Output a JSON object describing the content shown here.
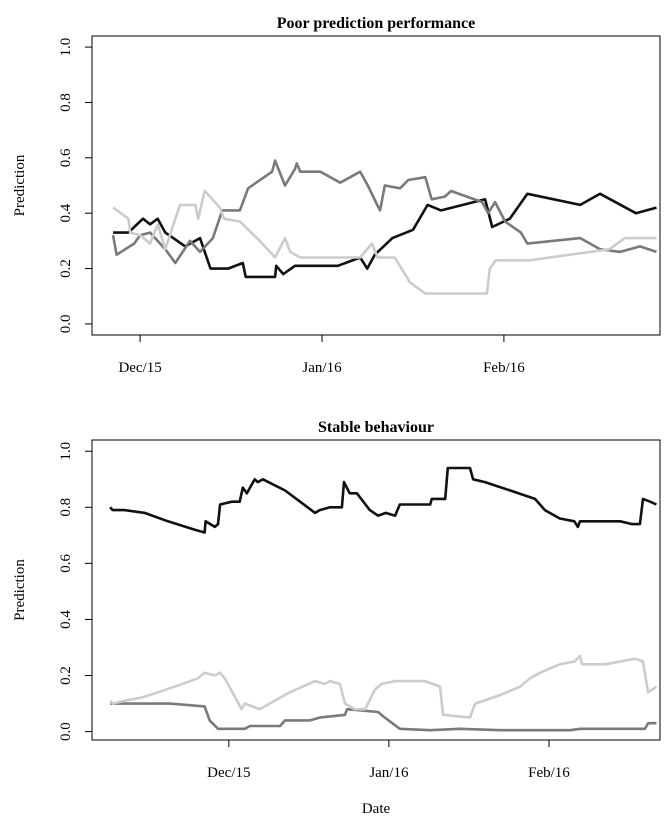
{
  "chart_data": [
    {
      "type": "line",
      "title": "Poor prediction performance",
      "ylabel": "Prediction",
      "xlim": [
        -8.2,
        88.6
      ],
      "xticks": [
        {
          "value": 0,
          "label": "Dec/15"
        },
        {
          "value": 31,
          "label": "Jan/16"
        },
        {
          "value": 62,
          "label": "Feb/16"
        }
      ],
      "ylim": [
        -0.04,
        1.04
      ],
      "yticks": [
        {
          "value": 0,
          "label": "0.0"
        },
        0.2,
        0.4,
        0.6,
        0.8,
        {
          "value": 1,
          "label": "1.0"
        }
      ],
      "series": [
        {
          "color": "#111111",
          "x": [
            -4.6,
            -2,
            0.5,
            1.7,
            3,
            4.3,
            7.7,
            10.2,
            12,
            15,
            17.5,
            18,
            23,
            23.2,
            24.4,
            26.4,
            33.7,
            37.5,
            38.7,
            40,
            43,
            46.5,
            49,
            51.3,
            58.8,
            60,
            63,
            66,
            75,
            78.4,
            84.5,
            88
          ],
          "values": [
            0.33,
            0.33,
            0.38,
            0.36,
            0.38,
            0.33,
            0.28,
            0.31,
            0.2,
            0.2,
            0.22,
            0.17,
            0.17,
            0.21,
            0.18,
            0.21,
            0.21,
            0.24,
            0.2,
            0.25,
            0.31,
            0.34,
            0.43,
            0.41,
            0.45,
            0.35,
            0.38,
            0.47,
            0.43,
            0.47,
            0.4,
            0.42
          ]
        },
        {
          "color": "#7a7a7a",
          "x": [
            -4.6,
            -4,
            -1,
            0,
            1.7,
            4.3,
            6,
            8.5,
            10.2,
            12.4,
            14,
            17,
            18.4,
            22.5,
            23,
            24.7,
            26.4,
            26.7,
            27.3,
            30.7,
            34.1,
            37.5,
            38.8,
            40.4,
            40.9,
            41.7,
            44.3,
            45.7,
            48.6,
            49.7,
            51.9,
            53,
            58.3,
            59.3,
            60.5,
            62.2,
            64.9,
            66,
            75,
            78.4,
            81.8,
            85.2,
            88
          ],
          "values": [
            0.32,
            0.25,
            0.29,
            0.32,
            0.33,
            0.27,
            0.22,
            0.3,
            0.26,
            0.31,
            0.41,
            0.41,
            0.49,
            0.55,
            0.59,
            0.5,
            0.56,
            0.58,
            0.55,
            0.55,
            0.51,
            0.55,
            0.5,
            0.43,
            0.41,
            0.5,
            0.49,
            0.52,
            0.53,
            0.45,
            0.46,
            0.48,
            0.44,
            0.4,
            0.44,
            0.37,
            0.33,
            0.29,
            0.31,
            0.27,
            0.26,
            0.28,
            0.26
          ]
        },
        {
          "color": "#cccccc",
          "x": [
            -4.6,
            -2,
            -1.7,
            0,
            1.7,
            3,
            4.3,
            6,
            6.8,
            9.4,
            9.9,
            11,
            12.3,
            13.6,
            14.3,
            17,
            20.4,
            23,
            24.7,
            25.6,
            27.3,
            37.5,
            39.5,
            40.5,
            43.4,
            46,
            48.6,
            59.1,
            59.6,
            60.6,
            66.4,
            76.7,
            80,
            82.6,
            88
          ],
          "values": [
            0.42,
            0.38,
            0.33,
            0.32,
            0.29,
            0.36,
            0.27,
            0.38,
            0.43,
            0.43,
            0.38,
            0.48,
            0.45,
            0.42,
            0.38,
            0.37,
            0.3,
            0.24,
            0.31,
            0.26,
            0.24,
            0.24,
            0.29,
            0.24,
            0.24,
            0.15,
            0.11,
            0.11,
            0.2,
            0.23,
            0.23,
            0.26,
            0.27,
            0.31,
            0.31
          ]
        }
      ]
    },
    {
      "type": "line",
      "title": "Stable behaviour",
      "ylabel": "Prediction",
      "xlabel": "Date",
      "xlim": [
        -26.5,
        83.5
      ],
      "xticks": [
        {
          "value": 0,
          "label": "Dec/15"
        },
        {
          "value": 31,
          "label": "Jan/16"
        },
        {
          "value": 62,
          "label": "Feb/16"
        }
      ],
      "ylim": [
        -0.03,
        1.04
      ],
      "yticks": [
        {
          "value": 0,
          "label": "0.0"
        },
        0.2,
        0.4,
        0.6,
        0.8,
        {
          "value": 1,
          "label": "1.0"
        }
      ],
      "series": [
        {
          "color": "#111111",
          "x": [
            -23,
            -22.5,
            -20.2,
            -16.3,
            -11.8,
            -6.6,
            -4.7,
            -4.5,
            -2.7,
            -2.1,
            -1.7,
            0.6,
            2.1,
            2.7,
            3.5,
            5,
            5.6,
            6.6,
            10.9,
            13.8,
            16.7,
            17.6,
            19.6,
            21.9,
            22.3,
            23.4,
            24.8,
            27.3,
            28.9,
            30.4,
            32.2,
            33.1,
            39,
            39.3,
            41.9,
            42.4,
            46.7,
            47.3,
            49.6,
            54.5,
            59.3,
            61.2,
            64.1,
            66.9,
            67.6,
            68,
            75.8,
            78.1,
            79.6,
            80.2,
            81.6,
            82.8
          ],
          "values": [
            0.8,
            0.79,
            0.79,
            0.78,
            0.75,
            0.72,
            0.71,
            0.75,
            0.73,
            0.74,
            0.81,
            0.82,
            0.82,
            0.87,
            0.85,
            0.9,
            0.89,
            0.9,
            0.86,
            0.82,
            0.78,
            0.79,
            0.8,
            0.8,
            0.89,
            0.85,
            0.85,
            0.79,
            0.77,
            0.78,
            0.77,
            0.81,
            0.81,
            0.83,
            0.83,
            0.94,
            0.94,
            0.9,
            0.89,
            0.86,
            0.83,
            0.79,
            0.76,
            0.75,
            0.73,
            0.75,
            0.75,
            0.74,
            0.74,
            0.83,
            0.82,
            0.81
          ]
        },
        {
          "color": "#7a7a7a",
          "x": [
            -23,
            -11.4,
            -4.7,
            -3.7,
            -2.1,
            3.1,
            4.1,
            9.9,
            10.9,
            15.7,
            17.6,
            22.5,
            22.9,
            28.9,
            30.2,
            33.1,
            39,
            44.8,
            52.5,
            66.1,
            68,
            80.6,
            81.2,
            82.8
          ],
          "values": [
            0.1,
            0.1,
            0.09,
            0.04,
            0.01,
            0.01,
            0.02,
            0.02,
            0.04,
            0.04,
            0.05,
            0.06,
            0.08,
            0.07,
            0.05,
            0.01,
            0.005,
            0.01,
            0.005,
            0.005,
            0.01,
            0.01,
            0.03,
            0.03
          ]
        },
        {
          "color": "#cccccc",
          "x": [
            -23,
            -22.5,
            -20.2,
            -17.2,
            -15.3,
            -10.5,
            -6,
            -4.7,
            -2.7,
            -1.7,
            -0.8,
            2.5,
            3.1,
            6,
            7.9,
            11.8,
            16.7,
            18.6,
            19.6,
            21.5,
            22.5,
            24.4,
            26.4,
            28.3,
            29.6,
            32.2,
            38,
            40.9,
            41.5,
            46.7,
            47.7,
            52.5,
            56.4,
            58.3,
            60.3,
            64.1,
            67,
            68,
            68.4,
            72.9,
            78.7,
            80.2,
            81.2,
            82.8
          ],
          "values": [
            0.11,
            0.1,
            0.11,
            0.12,
            0.13,
            0.16,
            0.19,
            0.21,
            0.2,
            0.21,
            0.19,
            0.08,
            0.1,
            0.08,
            0.1,
            0.14,
            0.18,
            0.17,
            0.18,
            0.17,
            0.1,
            0.08,
            0.08,
            0.15,
            0.17,
            0.18,
            0.18,
            0.16,
            0.06,
            0.05,
            0.1,
            0.13,
            0.16,
            0.19,
            0.21,
            0.24,
            0.25,
            0.27,
            0.24,
            0.24,
            0.26,
            0.25,
            0.14,
            0.16
          ]
        }
      ]
    }
  ]
}
